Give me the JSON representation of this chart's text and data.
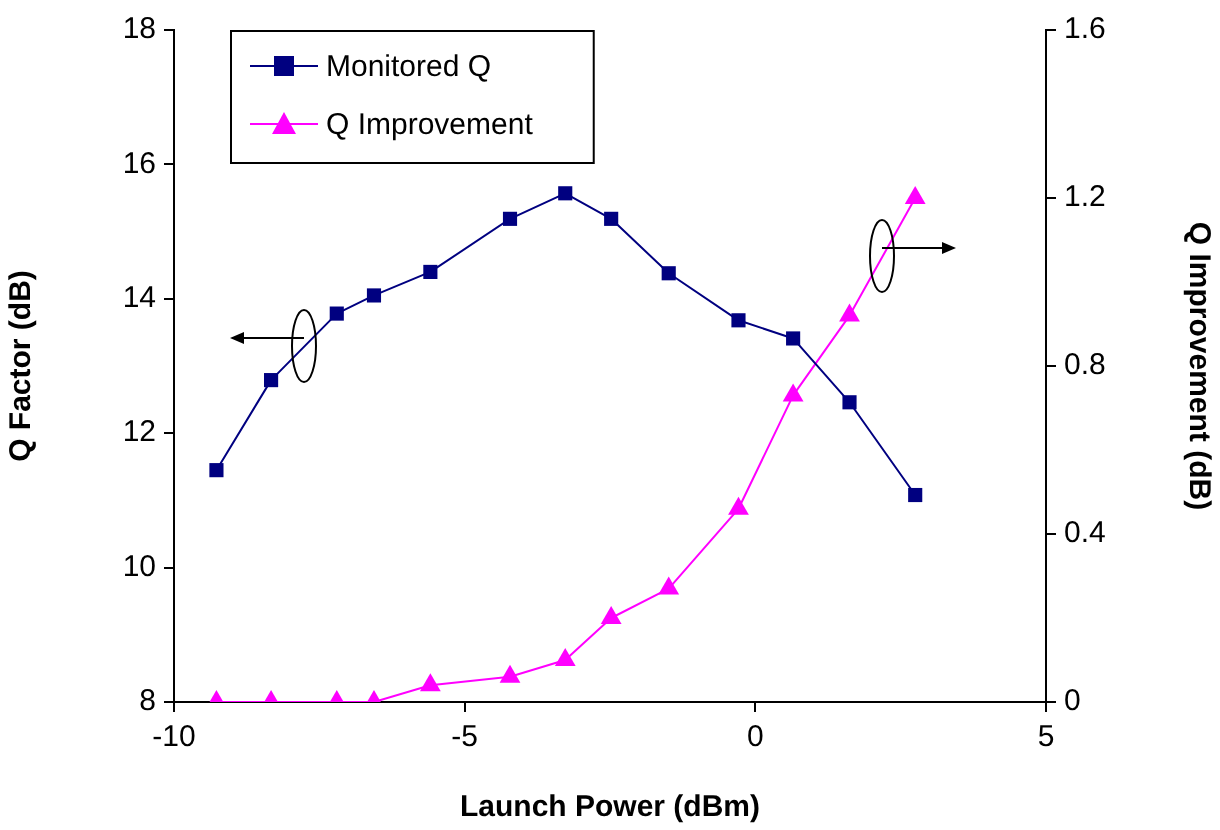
{
  "chart_data": {
    "type": "line",
    "xlabel": "Launch Power (dBm)",
    "ylabel": "Q Factor (dB)",
    "y2label": "Q Improvement (dB)",
    "x": [
      -9.27,
      -8.33,
      -7.2,
      -6.56,
      -5.59,
      -4.22,
      -3.27,
      -2.48,
      -1.49,
      -0.29,
      0.65,
      1.62,
      2.75
    ],
    "series": [
      {
        "name": "Monitored Q",
        "color": "#000080",
        "marker": "square",
        "values": [
          11.45,
          12.79,
          13.78,
          14.05,
          14.4,
          15.19,
          15.57,
          15.19,
          14.38,
          13.68,
          13.41,
          12.46,
          11.08
        ]
      },
      {
        "name": "Q Improvement",
        "color": "#ff00ff",
        "marker": "triangle",
        "axis": "y2",
        "values": [
          0,
          0,
          0,
          0,
          0.04,
          0.06,
          0.1,
          0.2,
          0.27,
          0.46,
          0.73,
          0.92,
          1.2
        ]
      }
    ],
    "xlim": [
      -10,
      5
    ],
    "xticks": [
      -10,
      -5,
      0,
      5
    ],
    "ylim": [
      8,
      18
    ],
    "yticks": [
      8,
      10,
      12,
      14,
      16,
      18
    ],
    "y2lim": [
      0,
      1.6
    ],
    "y2ticks": [
      0,
      0.4,
      0.8,
      1.2,
      1.6
    ],
    "grid": false,
    "legend": "top left",
    "line_style": "solid"
  }
}
